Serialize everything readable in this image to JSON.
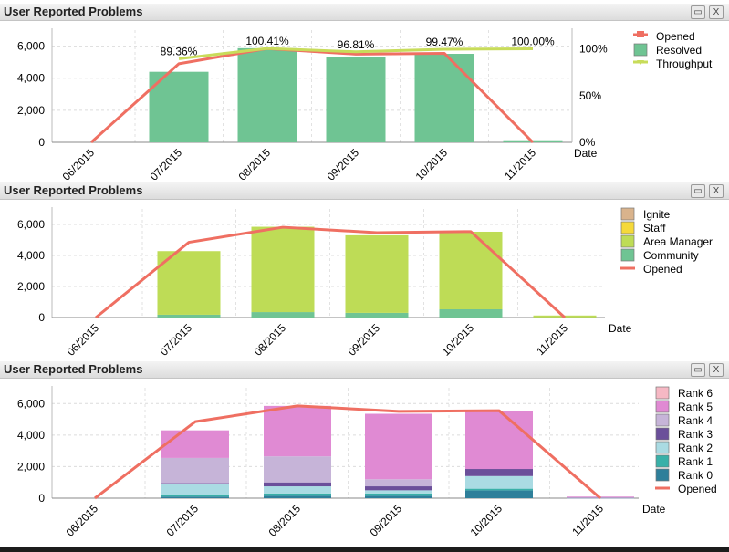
{
  "panels": [
    {
      "title": "User Reported Problems",
      "icons": [
        "print-icon",
        "export-excel-icon"
      ],
      "chart_data": {
        "type": "bar",
        "categories": [
          "06/2015",
          "07/2015",
          "08/2015",
          "09/2015",
          "10/2015",
          "11/2015"
        ],
        "xlabel": "Date",
        "ylim": [
          0,
          7000
        ],
        "yticks": [
          0,
          2000,
          4000,
          6000
        ],
        "ytick_labels": [
          "0",
          "2,000",
          "4,000",
          "6,000"
        ],
        "y2lim": [
          0,
          1.2
        ],
        "y2ticks": [
          0,
          0.5,
          1.0
        ],
        "y2tick_labels": [
          "0%",
          "50%",
          "100%"
        ],
        "grid": true,
        "legend_position": "right",
        "series": [
          {
            "name": "Opened",
            "kind": "line",
            "color": "#ef6f62",
            "values": [
              0,
              4900,
              5850,
              5500,
              5550,
              0
            ]
          },
          {
            "name": "Resolved",
            "kind": "bar",
            "color": "#6fc493",
            "values": [
              0,
              4400,
              5870,
              5330,
              5520,
              130
            ]
          },
          {
            "name": "Throughput",
            "kind": "line",
            "axis": "right",
            "color": "#c8dc5a",
            "values": [
              null,
              0.8936,
              1.0041,
              0.9681,
              0.9947,
              1.0
            ]
          }
        ],
        "data_labels": [
          null,
          "89.36%",
          "100.41%",
          "96.81%",
          "99.47%",
          "100.00%"
        ]
      }
    },
    {
      "title": "User Reported Problems",
      "icons": [
        "print-icon",
        "export-excel-icon"
      ],
      "chart_data": {
        "type": "bar",
        "stacked": true,
        "categories": [
          "06/2015",
          "07/2015",
          "08/2015",
          "09/2015",
          "10/2015",
          "11/2015"
        ],
        "xlabel": "Date",
        "ylim": [
          0,
          7000
        ],
        "yticks": [
          0,
          2000,
          4000,
          6000
        ],
        "ytick_labels": [
          "0",
          "2,000",
          "4,000",
          "6,000"
        ],
        "grid": true,
        "legend_position": "right",
        "series": [
          {
            "name": "Ignite",
            "kind": "bar",
            "color": "#d9b38c",
            "values": [
              0,
              0,
              0,
              0,
              0,
              0
            ]
          },
          {
            "name": "Staff",
            "kind": "bar",
            "color": "#f5d93a",
            "values": [
              0,
              0,
              0,
              0,
              0,
              0
            ]
          },
          {
            "name": "Area Manager",
            "kind": "bar",
            "color": "#bedc56",
            "values": [
              0,
              4100,
              5500,
              5000,
              5000,
              120
            ]
          },
          {
            "name": "Community",
            "kind": "bar",
            "color": "#6fc493",
            "values": [
              0,
              180,
              350,
              300,
              530,
              10
            ]
          },
          {
            "name": "Opened",
            "kind": "line",
            "color": "#ef6f62",
            "values": [
              0,
              4850,
              5820,
              5470,
              5540,
              0
            ]
          }
        ]
      }
    },
    {
      "title": "User Reported Problems",
      "icons": [
        "print-icon",
        "export-excel-icon"
      ],
      "chart_data": {
        "type": "bar",
        "stacked": true,
        "categories": [
          "06/2015",
          "07/2015",
          "08/2015",
          "09/2015",
          "10/2015",
          "11/2015"
        ],
        "xlabel": "Date",
        "ylim": [
          0,
          7000
        ],
        "yticks": [
          0,
          2000,
          4000,
          6000
        ],
        "ytick_labels": [
          "0",
          "2,000",
          "4,000",
          "6,000"
        ],
        "grid": true,
        "legend_position": "right",
        "series": [
          {
            "name": "Rank 6",
            "kind": "bar",
            "color": "#f6b8c4",
            "values": [
              0,
              0,
              0,
              0,
              0,
              0
            ]
          },
          {
            "name": "Rank 5",
            "kind": "bar",
            "color": "#e08ad3",
            "values": [
              0,
              1750,
              3200,
              4150,
              3700,
              50
            ]
          },
          {
            "name": "Rank 4",
            "kind": "bar",
            "color": "#c6b4d8",
            "values": [
              0,
              1600,
              1650,
              450,
              0,
              30
            ]
          },
          {
            "name": "Rank 3",
            "kind": "bar",
            "color": "#6b4f9a",
            "values": [
              0,
              50,
              250,
              250,
              450,
              10
            ]
          },
          {
            "name": "Rank 2",
            "kind": "bar",
            "color": "#aadbe3",
            "values": [
              0,
              700,
              450,
              200,
              800,
              10
            ]
          },
          {
            "name": "Rank 1",
            "kind": "bar",
            "color": "#39b0a8",
            "values": [
              0,
              100,
              150,
              150,
              100,
              0
            ]
          },
          {
            "name": "Rank 0",
            "kind": "bar",
            "color": "#2e7f9a",
            "values": [
              0,
              100,
              150,
              150,
              500,
              0
            ]
          },
          {
            "name": "Opened",
            "kind": "line",
            "color": "#ef6f62",
            "values": [
              0,
              4850,
              5850,
              5500,
              5550,
              0
            ]
          }
        ]
      }
    }
  ]
}
